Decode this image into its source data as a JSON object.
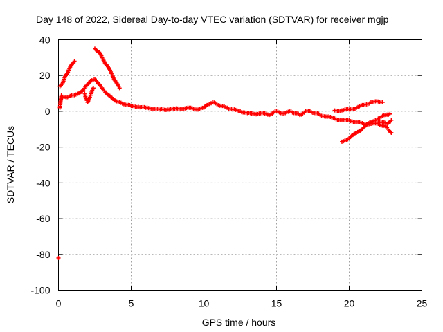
{
  "chart_data": {
    "type": "scatter",
    "title": "Day 148 of 2022, Sidereal Day-to-day VTEC variation (SDTVAR) for receiver mgjp",
    "xlabel": "GPS time / hours",
    "ylabel": "SDTVAR / TECUs",
    "xlim": [
      0,
      25
    ],
    "ylim": [
      -100,
      40
    ],
    "xticks": [
      0,
      5,
      10,
      15,
      20,
      25
    ],
    "yticks": [
      -100,
      -80,
      -60,
      -40,
      -20,
      0,
      20,
      40
    ],
    "grid": true,
    "marker": "+",
    "series": [
      {
        "name": "sdtvar-trace-main",
        "color": "#ff0000",
        "x": [
          0.0,
          0.1,
          0.2,
          0.3,
          0.5,
          0.7,
          0.9,
          1.1,
          1.4,
          1.7,
          2.0,
          2.2,
          2.5,
          2.7,
          3.0,
          3.3,
          3.6,
          3.9,
          4.2,
          4.5,
          5.0,
          5.5,
          6.0,
          6.5,
          7.0,
          7.5,
          8.0,
          8.5,
          9.0,
          9.5,
          10.0,
          10.3,
          10.6,
          10.9,
          11.2,
          11.6,
          12.0,
          12.5,
          13.0,
          13.5,
          14.0,
          14.5,
          14.9,
          15.3,
          15.6,
          16.0,
          16.3,
          16.6,
          17.0,
          17.3,
          17.7,
          18.0,
          18.5,
          19.0,
          19.5,
          20.0,
          20.5,
          21.0,
          21.5,
          22.0,
          22.3,
          22.6,
          22.9
        ],
        "y": [
          -82,
          2,
          9,
          8,
          8,
          8,
          9,
          9,
          10,
          12,
          15,
          17,
          18,
          16,
          13,
          10,
          8,
          6,
          5,
          4,
          3,
          2.5,
          2,
          1.5,
          1,
          1,
          1.5,
          1.5,
          2,
          1,
          2,
          4,
          5,
          4,
          3,
          2,
          1,
          0,
          -1,
          -1.5,
          -1,
          -2,
          0,
          -1,
          -1,
          0,
          -1,
          -2,
          0,
          0,
          -1,
          -2,
          -3,
          -4,
          -5,
          -5,
          -6,
          -7,
          -7,
          -7,
          -8,
          -9,
          -12
        ]
      },
      {
        "name": "sdtvar-trace-rise",
        "color": "#ff0000",
        "x": [
          0.1,
          0.3,
          0.5,
          0.7,
          0.9,
          1.1
        ],
        "y": [
          14,
          16,
          20,
          23,
          26,
          28
        ]
      },
      {
        "name": "sdtvar-trace-peak",
        "color": "#ff0000",
        "x": [
          2.5,
          2.8,
          3.0,
          3.3,
          3.6,
          3.9,
          4.2
        ],
        "y": [
          35,
          33,
          30,
          26,
          22,
          17,
          13
        ]
      },
      {
        "name": "sdtvar-trace-dip",
        "color": "#ff0000",
        "x": [
          1.8,
          1.9,
          2.0,
          2.2,
          2.4
        ],
        "y": [
          10,
          7,
          5,
          9,
          13
        ]
      },
      {
        "name": "sdtvar-trace-late-upper",
        "color": "#ff0000",
        "x": [
          19.0,
          19.5,
          20.0,
          20.5,
          21.0,
          21.5,
          22.0,
          22.3
        ],
        "y": [
          0.5,
          0.5,
          1,
          2,
          3.5,
          5,
          5.5,
          5
        ]
      },
      {
        "name": "sdtvar-trace-late-lower",
        "color": "#ff0000",
        "x": [
          19.5,
          20.0,
          20.5,
          21.0,
          21.5,
          22.0,
          22.5,
          22.8
        ],
        "y": [
          -17,
          -15,
          -12,
          -9,
          -6,
          -4,
          -2,
          -1.5
        ]
      },
      {
        "name": "sdtvar-trace-late-tail",
        "color": "#ff0000",
        "x": [
          22.0,
          22.3,
          22.6,
          22.9
        ],
        "y": [
          -6,
          -6,
          -7,
          -5
        ]
      }
    ]
  }
}
